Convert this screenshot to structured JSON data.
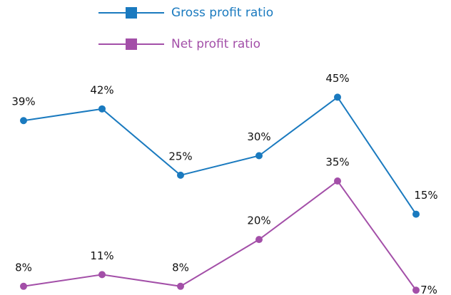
{
  "chart_data": {
    "type": "line",
    "categories": [
      null,
      null,
      null,
      null,
      null,
      null
    ],
    "series": [
      {
        "name": "Gross profit ratio",
        "color": "#1a7abf",
        "values": [
          39,
          42,
          25,
          30,
          45,
          15
        ],
        "value_labels": [
          "39%",
          "42%",
          "25%",
          "30%",
          "45%",
          "15%"
        ]
      },
      {
        "name": "Net profit ratio",
        "color": "#a34fa8",
        "axis": "y2",
        "values": [
          8,
          11,
          8,
          20,
          35,
          7
        ],
        "value_labels": [
          "8%",
          "11%",
          "8%",
          "20%",
          "35%",
          "7%"
        ]
      }
    ],
    "ylim": [
      -5,
      48
    ],
    "y2lim": [
      6.5,
      59.5
    ],
    "legend": "top"
  }
}
